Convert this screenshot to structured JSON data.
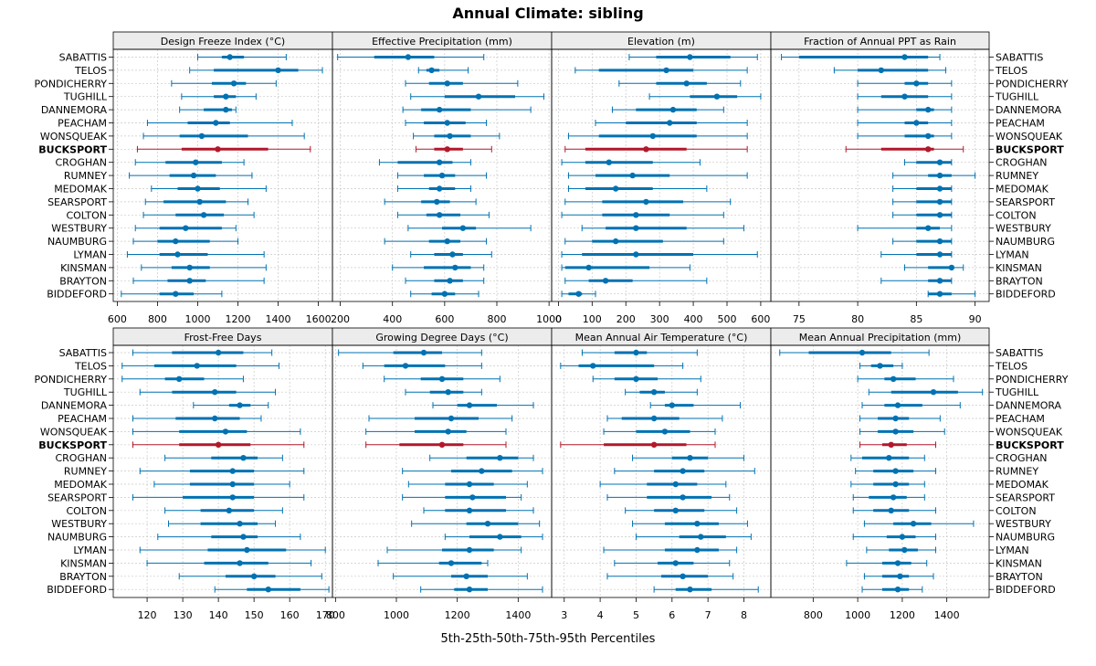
{
  "title": "Annual Climate: sibling",
  "xlabel": "5th-25th-50th-75th-95th Percentiles",
  "colors": {
    "normal": "#0072b2",
    "highlight": "#b2182b",
    "strip": "#ececec",
    "grid": "#c8c8c8"
  },
  "highlight_site": "BUCKSPORT",
  "rows": {
    "top": [
      "SABATTIS",
      "TELOS",
      "PONDICHERRY",
      "TUGHILL",
      "DANNEMORA",
      "PEACHAM",
      "WONSQUEAK",
      "BUCKSPORT",
      "CROGHAN",
      "RUMNEY",
      "MEDOMAK",
      "SEARSPORT",
      "COLTON",
      "WESTBURY",
      "NAUMBURG",
      "LYMAN",
      "KINSMAN",
      "BRAYTON",
      "BIDDEFORD"
    ],
    "bottom": [
      "SABATTIS",
      "TELOS",
      "PONDICHERRY",
      "TUGHILL",
      "DANNEMORA",
      "PEACHAM",
      "WONSQUEAK",
      "BUCKSPORT",
      "CROGHAN",
      "RUMNEY",
      "MEDOMAK",
      "SEARSPORT",
      "COLTON",
      "WESTBURY",
      "NAUMBURG",
      "LYMAN",
      "KINSMAN",
      "BRAYTON",
      "BIDDEFORD"
    ]
  },
  "chart_data": [
    {
      "type": "boxplot-percentiles",
      "title": "Design Freeze Index (°C)",
      "xlim": [
        580,
        1670
      ],
      "ticks": [
        600,
        800,
        1000,
        1200,
        1400,
        1600
      ],
      "series": [
        [
          1000,
          1120,
          1160,
          1230,
          1440
        ],
        [
          960,
          1080,
          1400,
          1500,
          1620
        ],
        [
          870,
          1070,
          1180,
          1240,
          1390
        ],
        [
          920,
          1080,
          1140,
          1190,
          1290
        ],
        [
          910,
          1030,
          1140,
          1170,
          1190
        ],
        [
          750,
          950,
          1090,
          1160,
          1470
        ],
        [
          730,
          910,
          1020,
          1250,
          1530
        ],
        [
          700,
          920,
          1100,
          1350,
          1560
        ],
        [
          690,
          840,
          990,
          1120,
          1230
        ],
        [
          660,
          860,
          980,
          1090,
          1270
        ],
        [
          770,
          900,
          1000,
          1110,
          1340
        ],
        [
          740,
          830,
          1010,
          1140,
          1250
        ],
        [
          730,
          890,
          1030,
          1130,
          1280
        ],
        [
          690,
          810,
          940,
          1120,
          1190
        ],
        [
          680,
          800,
          890,
          1060,
          1200
        ],
        [
          650,
          810,
          900,
          1050,
          1330
        ],
        [
          720,
          870,
          960,
          1060,
          1340
        ],
        [
          680,
          850,
          960,
          1040,
          1330
        ],
        [
          620,
          810,
          890,
          980,
          1120
        ]
      ]
    },
    {
      "type": "boxplot-percentiles",
      "title": "Effective Precipitation (mm)",
      "xlim": [
        170,
        1010
      ],
      "ticks": [
        200,
        400,
        600,
        800,
        1000
      ],
      "series": [
        [
          190,
          330,
          460,
          560,
          750
        ],
        [
          500,
          530,
          550,
          580,
          690
        ],
        [
          450,
          540,
          610,
          670,
          880
        ],
        [
          470,
          600,
          730,
          870,
          980
        ],
        [
          440,
          510,
          580,
          700,
          930
        ],
        [
          450,
          520,
          610,
          680,
          760
        ],
        [
          480,
          560,
          620,
          700,
          810
        ],
        [
          490,
          560,
          610,
          670,
          780
        ],
        [
          350,
          420,
          580,
          630,
          700
        ],
        [
          420,
          520,
          590,
          640,
          760
        ],
        [
          420,
          540,
          580,
          640,
          700
        ],
        [
          370,
          510,
          570,
          620,
          720
        ],
        [
          420,
          530,
          580,
          660,
          770
        ],
        [
          460,
          590,
          670,
          720,
          930
        ],
        [
          370,
          540,
          610,
          660,
          760
        ],
        [
          470,
          560,
          630,
          670,
          780
        ],
        [
          400,
          520,
          640,
          700,
          750
        ],
        [
          450,
          560,
          620,
          670,
          750
        ],
        [
          470,
          550,
          600,
          640,
          730
        ]
      ]
    },
    {
      "type": "boxplot-percentiles",
      "title": "Elevation (m)",
      "xlim": [
        -20,
        630
      ],
      "ticks": [
        0,
        100,
        200,
        300,
        400,
        500,
        600
      ],
      "series": [
        [
          210,
          290,
          390,
          510,
          590
        ],
        [
          50,
          120,
          320,
          400,
          560
        ],
        [
          180,
          290,
          380,
          440,
          540
        ],
        [
          270,
          390,
          470,
          530,
          600
        ],
        [
          160,
          230,
          340,
          410,
          490
        ],
        [
          110,
          200,
          330,
          410,
          560
        ],
        [
          30,
          120,
          280,
          410,
          560
        ],
        [
          20,
          80,
          260,
          380,
          560
        ],
        [
          10,
          80,
          150,
          280,
          420
        ],
        [
          30,
          110,
          220,
          330,
          560
        ],
        [
          30,
          80,
          170,
          280,
          440
        ],
        [
          20,
          130,
          260,
          370,
          510
        ],
        [
          10,
          130,
          230,
          330,
          490
        ],
        [
          70,
          140,
          230,
          380,
          550
        ],
        [
          20,
          100,
          170,
          310,
          490
        ],
        [
          10,
          70,
          230,
          400,
          590
        ],
        [
          10,
          20,
          90,
          270,
          390
        ],
        [
          20,
          90,
          140,
          220,
          440
        ],
        [
          10,
          30,
          60,
          70,
          110
        ]
      ]
    },
    {
      "type": "boxplot-percentiles",
      "title": "Fraction of Annual PPT as Rain",
      "xlim": [
        72.6,
        91.2
      ],
      "ticks": [
        75,
        80,
        85,
        90
      ],
      "series": [
        [
          73.5,
          75,
          84,
          86,
          87
        ],
        [
          78,
          80,
          82,
          86,
          87.5
        ],
        [
          80,
          84,
          85,
          86,
          88
        ],
        [
          80,
          82,
          84,
          86,
          88
        ],
        [
          80,
          85,
          86,
          86.5,
          88
        ],
        [
          80,
          84,
          85,
          86,
          88
        ],
        [
          80,
          84,
          86,
          86.5,
          88
        ],
        [
          79,
          82,
          86,
          86.5,
          89
        ],
        [
          84,
          85,
          87,
          88,
          88
        ],
        [
          83,
          86,
          87,
          88,
          90
        ],
        [
          83,
          85,
          87,
          88,
          88
        ],
        [
          83,
          85,
          87,
          88,
          88
        ],
        [
          83,
          85,
          87,
          88,
          88
        ],
        [
          80,
          85,
          86,
          87,
          88
        ],
        [
          83,
          85,
          87,
          88,
          88
        ],
        [
          82,
          85,
          87,
          88,
          88
        ],
        [
          84,
          86,
          88,
          88,
          89
        ],
        [
          82,
          86,
          87,
          88,
          88
        ],
        [
          86,
          86,
          87,
          88,
          90
        ]
      ]
    },
    {
      "type": "boxplot-percentiles",
      "title": "Frost-Free Days",
      "xlim": [
        110.5,
        172
      ],
      "ticks": [
        120,
        130,
        140,
        150,
        160,
        170
      ],
      "series": [
        [
          116,
          127,
          140,
          147,
          155
        ],
        [
          113,
          122,
          134,
          145,
          157
        ],
        [
          113,
          125,
          129,
          136,
          147
        ],
        [
          118,
          127,
          139,
          145,
          156
        ],
        [
          133,
          143,
          146,
          149,
          154
        ],
        [
          116,
          128,
          139,
          146,
          152
        ],
        [
          116,
          129,
          142,
          148,
          163
        ],
        [
          116,
          129,
          140,
          149,
          164
        ],
        [
          125,
          138,
          147,
          151,
          158
        ],
        [
          118,
          132,
          144,
          150,
          164
        ],
        [
          122,
          132,
          144,
          150,
          160
        ],
        [
          116,
          130,
          144,
          150,
          164
        ],
        [
          125,
          135,
          143,
          150,
          158
        ],
        [
          126,
          135,
          146,
          151,
          156
        ],
        [
          123,
          138,
          147,
          151,
          163
        ],
        [
          118,
          137,
          148,
          159,
          170
        ],
        [
          120,
          136,
          146,
          154,
          166
        ],
        [
          129,
          142,
          150,
          156,
          169
        ],
        [
          139,
          148,
          154,
          163,
          171
        ]
      ]
    },
    {
      "type": "boxplot-percentiles",
      "title": "Growing Degree Days (°C)",
      "xlim": [
        790,
        1510
      ],
      "ticks": [
        800,
        1000,
        1200,
        1400
      ],
      "series": [
        [
          810,
          990,
          1090,
          1150,
          1280
        ],
        [
          890,
          960,
          1030,
          1160,
          1280
        ],
        [
          960,
          1080,
          1150,
          1220,
          1340
        ],
        [
          1030,
          1110,
          1170,
          1220,
          1280
        ],
        [
          1120,
          1200,
          1240,
          1330,
          1450
        ],
        [
          910,
          1060,
          1180,
          1270,
          1380
        ],
        [
          900,
          1060,
          1170,
          1230,
          1360
        ],
        [
          900,
          1010,
          1150,
          1220,
          1360
        ],
        [
          1110,
          1230,
          1340,
          1400,
          1450
        ],
        [
          1020,
          1180,
          1280,
          1380,
          1480
        ],
        [
          1040,
          1160,
          1240,
          1320,
          1430
        ],
        [
          1020,
          1160,
          1250,
          1360,
          1410
        ],
        [
          1090,
          1160,
          1240,
          1360,
          1450
        ],
        [
          1050,
          1230,
          1300,
          1400,
          1470
        ],
        [
          1160,
          1240,
          1340,
          1410,
          1480
        ],
        [
          970,
          1150,
          1240,
          1320,
          1410
        ],
        [
          940,
          1140,
          1180,
          1280,
          1300
        ],
        [
          990,
          1180,
          1230,
          1300,
          1430
        ],
        [
          1080,
          1190,
          1240,
          1300,
          1480
        ]
      ]
    },
    {
      "type": "boxplot-percentiles",
      "title": "Mean Annual Air Temperature (°C)",
      "xlim": [
        2.65,
        8.75
      ],
      "ticks": [
        3,
        4,
        5,
        6,
        7,
        8
      ],
      "series": [
        [
          3.5,
          4.4,
          5,
          5.3,
          6.7
        ],
        [
          2.9,
          3.4,
          3.8,
          5.5,
          6.3
        ],
        [
          3.8,
          4.4,
          5,
          5.6,
          6.8
        ],
        [
          4.7,
          5.1,
          5.5,
          5.8,
          6.7
        ],
        [
          5.4,
          5.8,
          6,
          6.6,
          7.9
        ],
        [
          4.2,
          4.6,
          5.5,
          6.2,
          7.4
        ],
        [
          4.1,
          5,
          5.8,
          6.5,
          7.2
        ],
        [
          2.9,
          4.1,
          5.5,
          6.4,
          7.2
        ],
        [
          4.9,
          6,
          6.5,
          7,
          8
        ],
        [
          4.4,
          5.5,
          6.3,
          6.9,
          8.3
        ],
        [
          4,
          5.3,
          6.1,
          6.7,
          7.5
        ],
        [
          4.2,
          5.3,
          6.3,
          7.1,
          7.6
        ],
        [
          4.7,
          5.5,
          6.1,
          6.9,
          7.8
        ],
        [
          4.9,
          5.8,
          6.7,
          7.3,
          8.1
        ],
        [
          5,
          6.2,
          6.8,
          7.5,
          8.2
        ],
        [
          4.1,
          5.8,
          6.7,
          7.3,
          7.8
        ],
        [
          4.4,
          5.6,
          6.1,
          6.6,
          7.6
        ],
        [
          4.2,
          5.7,
          6.3,
          7,
          7.7
        ],
        [
          5.5,
          6.1,
          6.5,
          7.1,
          8.4
        ]
      ]
    },
    {
      "type": "boxplot-percentiles",
      "title": "Mean Annual Precipitation (mm)",
      "xlim": [
        610,
        1590
      ],
      "ticks": [
        800,
        1000,
        1200,
        1400
      ],
      "series": [
        [
          650,
          780,
          1020,
          1150,
          1320
        ],
        [
          1010,
          1060,
          1100,
          1160,
          1200
        ],
        [
          1000,
          1120,
          1160,
          1260,
          1430
        ],
        [
          1050,
          1150,
          1340,
          1450,
          1560
        ],
        [
          1020,
          1120,
          1180,
          1290,
          1460
        ],
        [
          1010,
          1090,
          1170,
          1230,
          1370
        ],
        [
          1010,
          1090,
          1170,
          1250,
          1390
        ],
        [
          1010,
          1110,
          1150,
          1220,
          1350
        ],
        [
          970,
          1020,
          1140,
          1230,
          1300
        ],
        [
          990,
          1070,
          1170,
          1250,
          1350
        ],
        [
          970,
          1070,
          1170,
          1230,
          1300
        ],
        [
          980,
          1050,
          1160,
          1220,
          1300
        ],
        [
          980,
          1070,
          1150,
          1230,
          1350
        ],
        [
          1030,
          1160,
          1250,
          1330,
          1520
        ],
        [
          980,
          1130,
          1200,
          1260,
          1350
        ],
        [
          1040,
          1140,
          1210,
          1270,
          1350
        ],
        [
          950,
          1110,
          1180,
          1240,
          1310
        ],
        [
          1030,
          1110,
          1190,
          1230,
          1340
        ],
        [
          1020,
          1110,
          1180,
          1230,
          1290
        ]
      ]
    }
  ]
}
